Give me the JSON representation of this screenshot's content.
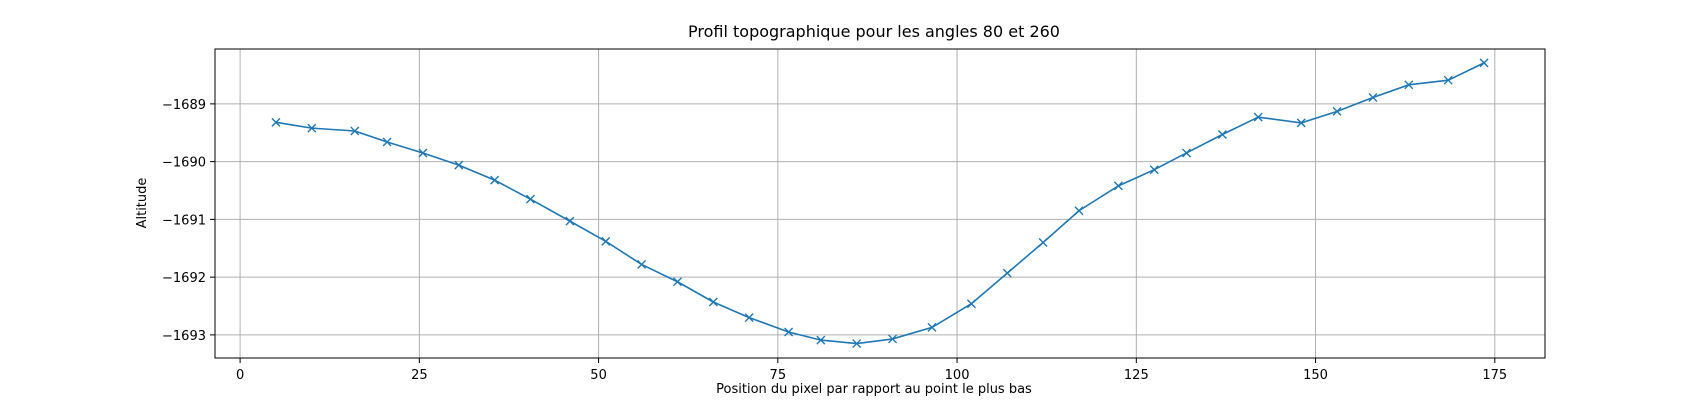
{
  "chart_data": {
    "type": "line",
    "title": "Profil topographique pour les angles 80 et 260",
    "xlabel": "Position du pixel par rapport au point le plus bas",
    "ylabel": "Altitude",
    "xlim": [
      -3.5,
      182
    ],
    "ylim": [
      -1693.4,
      -1688.05
    ],
    "xticks": [
      0,
      25,
      50,
      75,
      100,
      125,
      150,
      175
    ],
    "yticks": [
      -1693,
      -1692,
      -1691,
      -1690,
      -1689
    ],
    "xtick_labels": [
      "0",
      "25",
      "50",
      "75",
      "100",
      "125",
      "150",
      "175"
    ],
    "ytick_labels": [
      "−1693",
      "−1692",
      "−1691",
      "−1690",
      "−1689"
    ],
    "grid": true,
    "marker": "x",
    "color": "#1f77b4",
    "series": [
      {
        "x": [
          5,
          10,
          16,
          20.5,
          25.5,
          30.5,
          35.5,
          40.5,
          46,
          51,
          56,
          61,
          66,
          71,
          76.5,
          81,
          86,
          91,
          96.5,
          102,
          107,
          112,
          117,
          122.5,
          127.5,
          132,
          137,
          142,
          148,
          153,
          158,
          163,
          168.5,
          173.5
        ],
        "y": [
          -1689.32,
          -1689.42,
          -1689.47,
          -1689.66,
          -1689.85,
          -1690.06,
          -1690.32,
          -1690.65,
          -1691.03,
          -1691.38,
          -1691.78,
          -1692.08,
          -1692.43,
          -1692.7,
          -1692.95,
          -1693.09,
          -1693.15,
          -1693.07,
          -1692.87,
          -1692.46,
          -1691.93,
          -1691.4,
          -1690.85,
          -1690.42,
          -1690.14,
          -1689.85,
          -1689.53,
          -1689.23,
          -1689.33,
          -1689.13,
          -1688.89,
          -1688.67,
          -1688.59,
          -1688.29
        ]
      }
    ]
  }
}
